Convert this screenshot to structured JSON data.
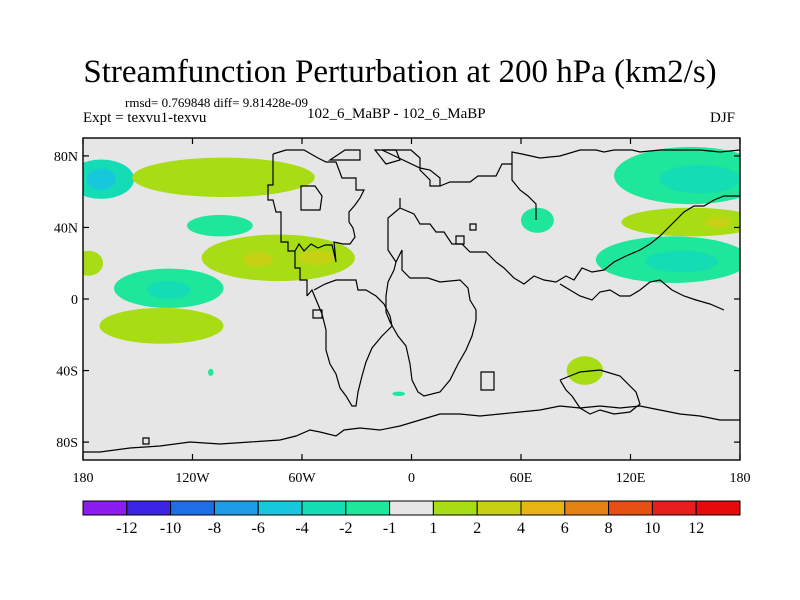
{
  "header": {
    "title": "Streamfunction Perturbation at 200 hPa (km2/s)",
    "stats": "rmsd= 0.769848 diff= 9.81428e-09",
    "left_label": "Expt = texvu1-texvu",
    "center_label": "102_6_MaBP - 102_6_MaBP",
    "right_label": "DJF"
  },
  "chart_data": {
    "type": "heatmap",
    "title": "Streamfunction Perturbation at 200 hPa (km2/s)",
    "xlabel": "",
    "ylabel": "",
    "xlim": [
      -180,
      180
    ],
    "ylim": [
      -90,
      90
    ],
    "x_ticks": [
      {
        "value": -180,
        "label": "180"
      },
      {
        "value": -120,
        "label": "120W"
      },
      {
        "value": -60,
        "label": "60W"
      },
      {
        "value": 0,
        "label": "0"
      },
      {
        "value": 60,
        "label": "60E"
      },
      {
        "value": 120,
        "label": "120E"
      },
      {
        "value": 180,
        "label": "180"
      }
    ],
    "y_ticks": [
      {
        "value": 80,
        "label": "80N"
      },
      {
        "value": 40,
        "label": "40N"
      },
      {
        "value": 0,
        "label": "0"
      },
      {
        "value": -40,
        "label": "40S"
      },
      {
        "value": -80,
        "label": "80S"
      }
    ],
    "levels": [
      -12,
      -10,
      -8,
      -6,
      -4,
      -2,
      -1,
      1,
      2,
      4,
      6,
      8,
      10,
      12
    ],
    "colors": [
      "#8c1cf0",
      "#3b24e6",
      "#1e6fe6",
      "#1e9be6",
      "#17c8dc",
      "#14dcb4",
      "#1ee69b",
      "#e6e6e6",
      "#a8dc14",
      "#c8d214",
      "#e6b414",
      "#e68214",
      "#e65014",
      "#e61e1e",
      "#e60a0a"
    ],
    "features": [
      {
        "lon": -170,
        "lat": 67,
        "rx": 18,
        "ry": 11,
        "value": -3
      },
      {
        "lon": -170,
        "lat": 67,
        "rx": 8,
        "ry": 6,
        "value": -4.5
      },
      {
        "lon": -103,
        "lat": 68,
        "rx": 50,
        "ry": 11,
        "value": 1.6
      },
      {
        "lon": -105,
        "lat": 41,
        "rx": 18,
        "ry": 6,
        "value": -1.5
      },
      {
        "lon": -177,
        "lat": 20,
        "rx": 8,
        "ry": 7,
        "value": 1.5
      },
      {
        "lon": -73,
        "lat": 23,
        "rx": 42,
        "ry": 13,
        "value": 1.7
      },
      {
        "lon": -84,
        "lat": 22,
        "rx": 8,
        "ry": 4,
        "value": 3
      },
      {
        "lon": -52,
        "lat": 23,
        "rx": 10,
        "ry": 4,
        "value": 3
      },
      {
        "lon": -133,
        "lat": 6,
        "rx": 30,
        "ry": 11,
        "value": -1.6
      },
      {
        "lon": -133,
        "lat": 5,
        "rx": 12,
        "ry": 5,
        "value": -3.5
      },
      {
        "lon": -137,
        "lat": -15,
        "rx": 34,
        "ry": 10,
        "value": 1.6
      },
      {
        "lon": -110,
        "lat": -41,
        "rx": 1.5,
        "ry": 2,
        "value": -1.5
      },
      {
        "lon": -7,
        "lat": -53,
        "rx": 3.5,
        "ry": 1.2,
        "value": -2
      },
      {
        "lon": 69,
        "lat": 44,
        "rx": 9,
        "ry": 7,
        "value": -1.5
      },
      {
        "lon": 95,
        "lat": -40,
        "rx": 10,
        "ry": 8,
        "value": 1.6
      },
      {
        "lon": 153,
        "lat": 69,
        "rx": 42,
        "ry": 16,
        "value": -1.8
      },
      {
        "lon": 158,
        "lat": 67,
        "rx": 22,
        "ry": 8,
        "value": -3.5
      },
      {
        "lon": 153,
        "lat": 43,
        "rx": 38,
        "ry": 8,
        "value": 1.6
      },
      {
        "lon": 168,
        "lat": 43,
        "rx": 7,
        "ry": 3,
        "value": 3
      },
      {
        "lon": 143,
        "lat": 22,
        "rx": 42,
        "ry": 13,
        "value": -1.8
      },
      {
        "lon": 148,
        "lat": 21,
        "rx": 20,
        "ry": 6,
        "value": -3.5
      }
    ]
  }
}
